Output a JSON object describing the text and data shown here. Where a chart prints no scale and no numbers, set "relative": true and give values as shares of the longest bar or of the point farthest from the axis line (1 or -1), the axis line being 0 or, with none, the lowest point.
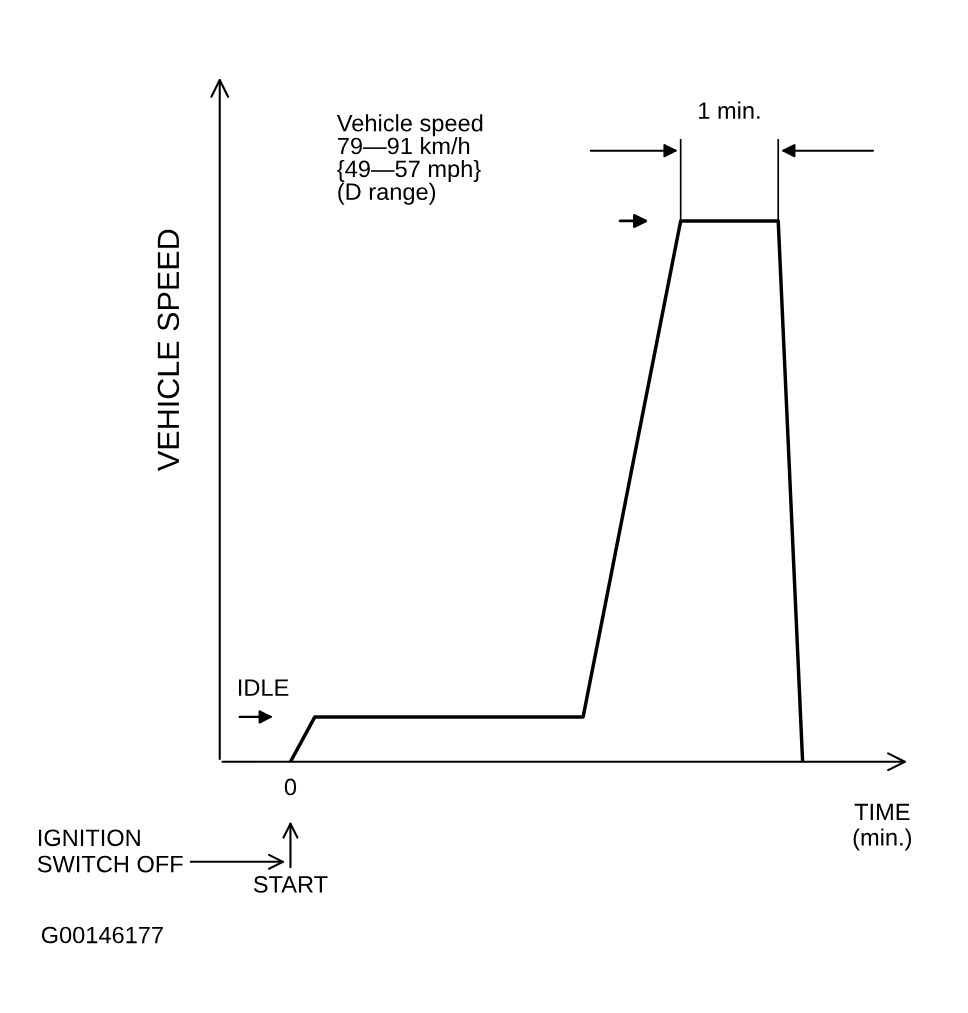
{
  "chart_data": {
    "type": "line",
    "relative": true,
    "xlabel": "TIME\n(min.)",
    "ylabel": "VEHICLE SPEED",
    "categories": [
      null,
      null,
      null,
      null,
      null,
      null,
      null,
      null,
      null,
      null,
      null,
      null,
      null,
      null,
      null,
      null,
      null,
      null,
      null,
      null,
      null,
      null
    ],
    "series": [
      {
        "color": "#000000",
        "values": [
          0,
          0.083,
          0.083,
          0.083,
          0.083,
          0.083,
          0.083,
          0.083,
          0.083,
          0.083,
          0.083,
          0.083,
          0.083,
          0.312,
          0.542,
          0.771,
          1,
          1,
          1,
          1,
          1,
          0
        ]
      }
    ],
    "annotations": [
      "Vehicle speed\n79—91 km/h\n{49—57 mph}\n(D range)",
      "IDLE",
      "START",
      "IGNITION\nSWITCH OFF",
      "G00146177",
      "0",
      "1 min."
    ],
    "marker": "none",
    "line_style": "solid",
    "legend": false
  }
}
